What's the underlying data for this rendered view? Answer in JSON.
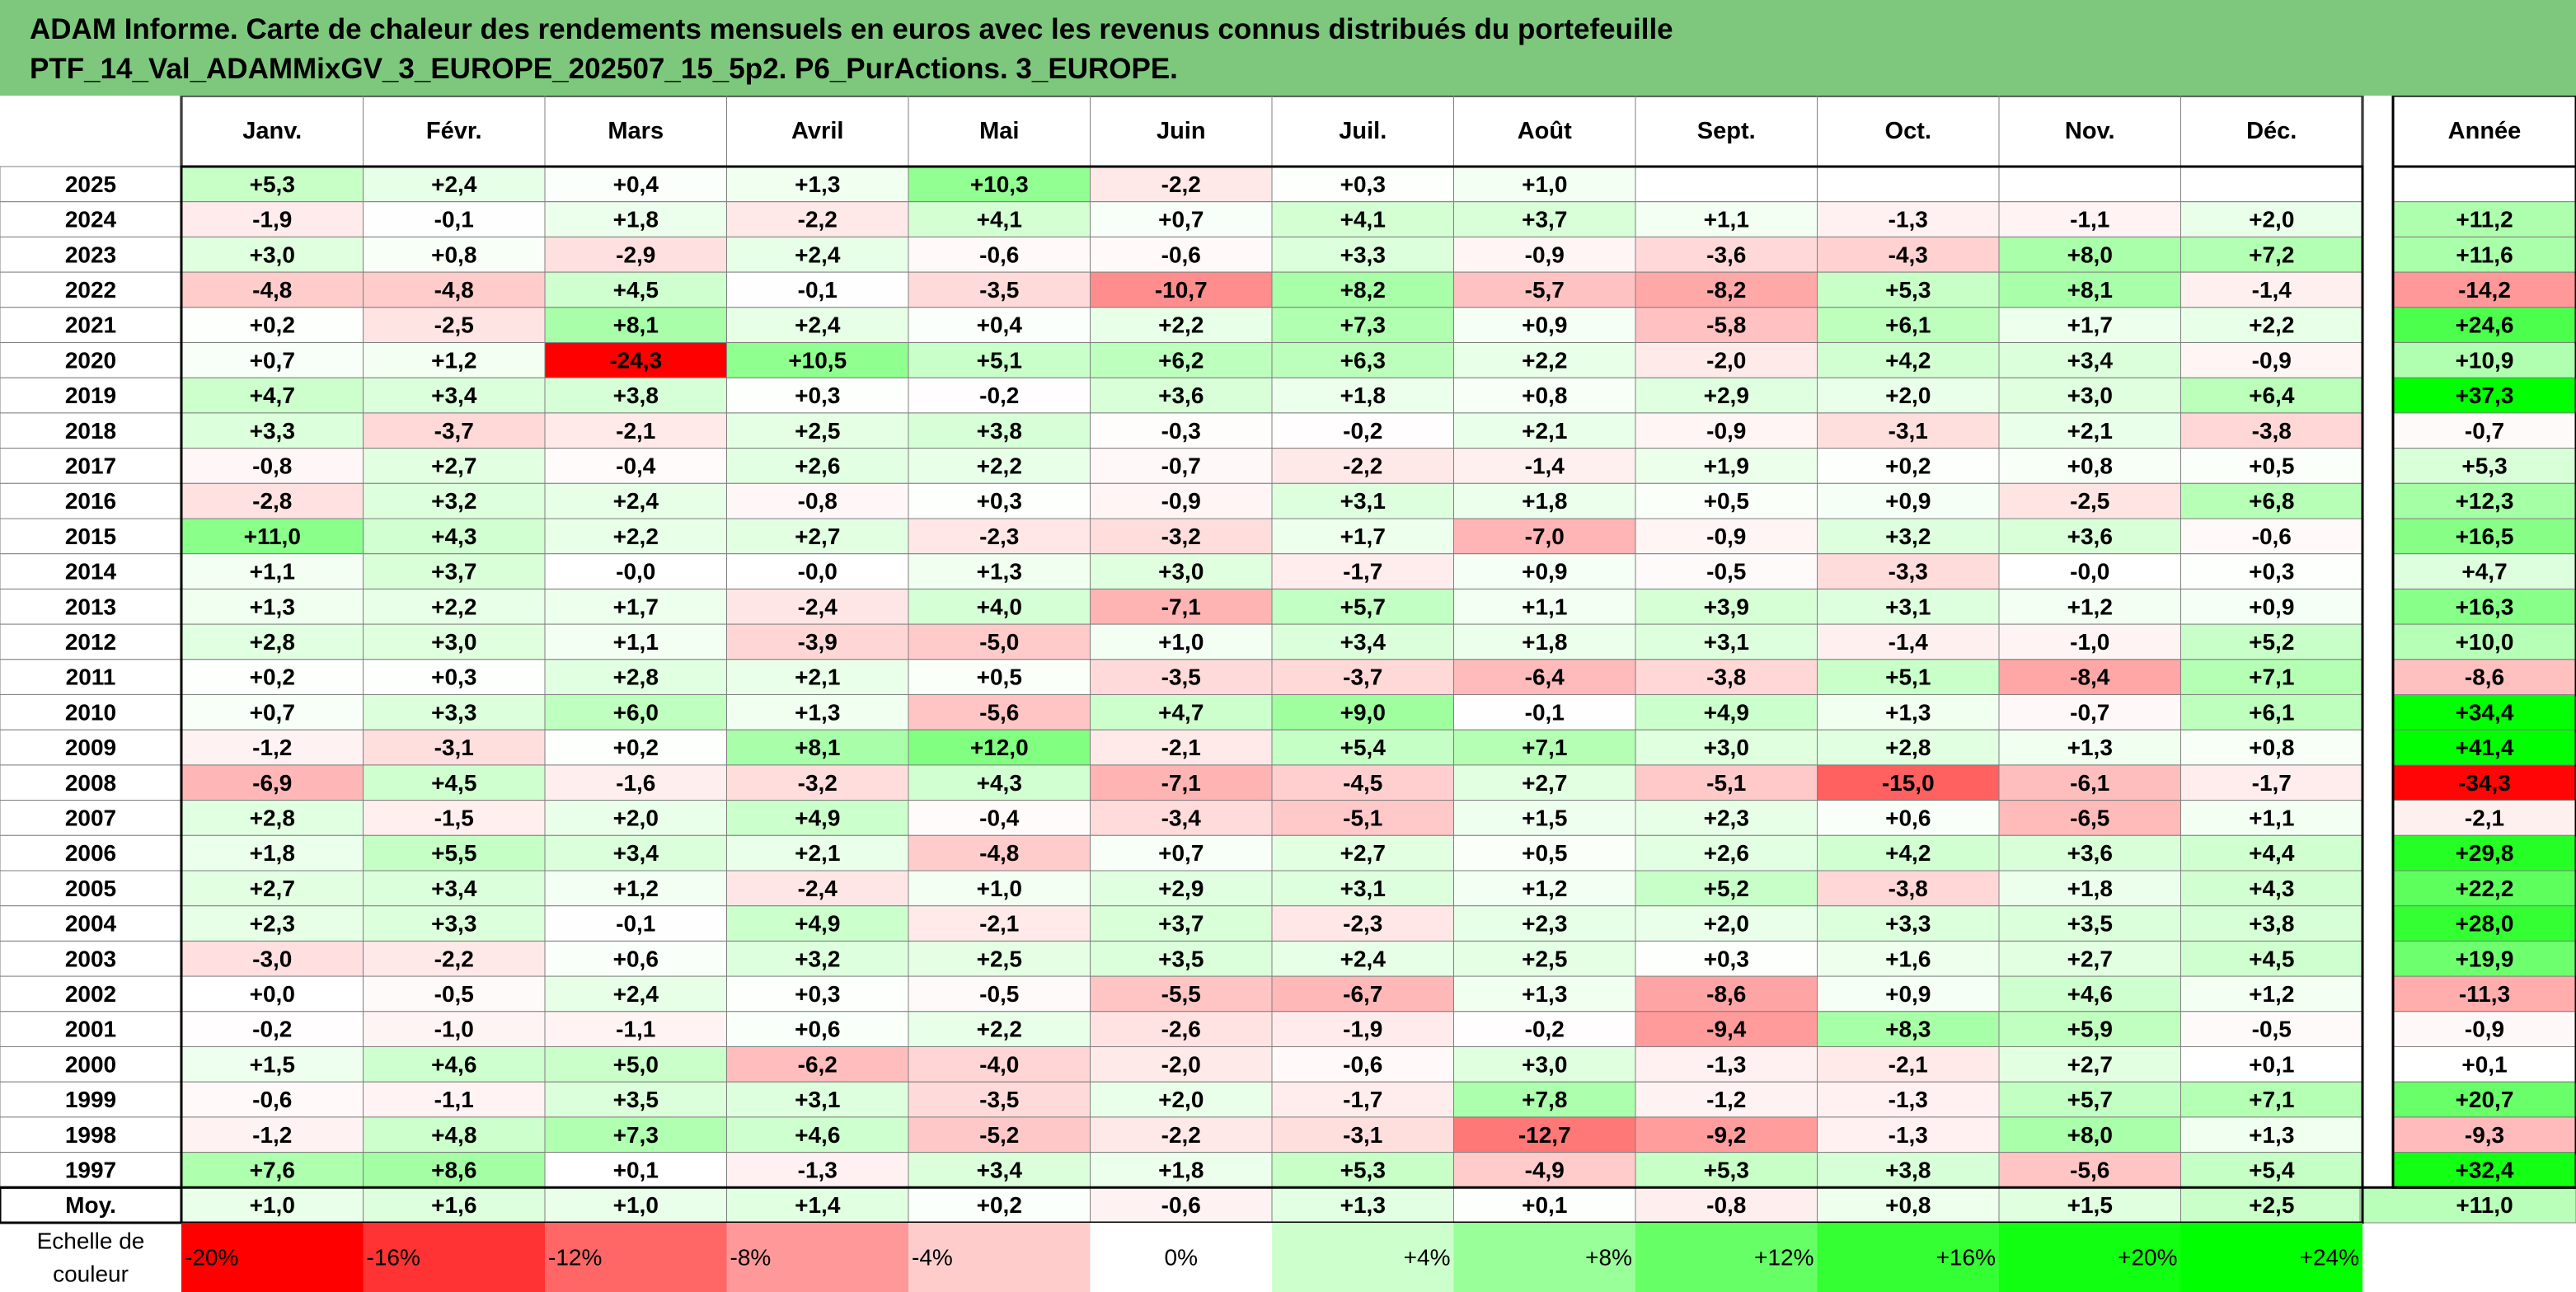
{
  "title": {
    "line1": "ADAM Informe. Carte de chaleur des rendements mensuels en euros avec les revenus connus distribués du portefeuille",
    "line2": "PTF_14_Val_ADAMMixGV_3_EUROPE_202507_15_5p2. P6_PurActions. 3_EUROPE."
  },
  "colors": {
    "title_background": "#7dc87d",
    "deep_red": "#ff0000",
    "deep_green": "#00ff00",
    "neutral": "#ffffff",
    "grid": "#7f7f7f",
    "frame": "#000000"
  },
  "chart_data": {
    "type": "heatmap",
    "months": [
      "Janv.",
      "Févr.",
      "Mars",
      "Avril",
      "Mai",
      "Juin",
      "Juil.",
      "Août",
      "Sept.",
      "Oct.",
      "Nov.",
      "Déc."
    ],
    "year_column_label": "Année",
    "average_row_label": "Moy.",
    "color_scale_label": [
      "Echelle de",
      "couleur"
    ],
    "rows": [
      {
        "year": "2025",
        "values": [
          "+5,3",
          "+2,4",
          "+0,4",
          "+1,3",
          "+10,3",
          "-2,2",
          "+0,3",
          "+1,0",
          "",
          "",
          "",
          ""
        ],
        "annual": ""
      },
      {
        "year": "2024",
        "values": [
          "-1,9",
          "-0,1",
          "+1,8",
          "-2,2",
          "+4,1",
          "+0,7",
          "+4,1",
          "+3,7",
          "+1,1",
          "-1,3",
          "-1,1",
          "+2,0"
        ],
        "annual": "+11,2"
      },
      {
        "year": "2023",
        "values": [
          "+3,0",
          "+0,8",
          "-2,9",
          "+2,4",
          "-0,6",
          "-0,6",
          "+3,3",
          "-0,9",
          "-3,6",
          "-4,3",
          "+8,0",
          "+7,2"
        ],
        "annual": "+11,6"
      },
      {
        "year": "2022",
        "values": [
          "-4,8",
          "-4,8",
          "+4,5",
          "-0,1",
          "-3,5",
          "-10,7",
          "+8,2",
          "-5,7",
          "-8,2",
          "+5,3",
          "+8,1",
          "-1,4"
        ],
        "annual": "-14,2"
      },
      {
        "year": "2021",
        "values": [
          "+0,2",
          "-2,5",
          "+8,1",
          "+2,4",
          "+0,4",
          "+2,2",
          "+7,3",
          "+0,9",
          "-5,8",
          "+6,1",
          "+1,7",
          "+2,2"
        ],
        "annual": "+24,6"
      },
      {
        "year": "2020",
        "values": [
          "+0,7",
          "+1,2",
          "-24,3",
          "+10,5",
          "+5,1",
          "+6,2",
          "+6,3",
          "+2,2",
          "-2,0",
          "+4,2",
          "+3,4",
          "-0,9"
        ],
        "annual": "+10,9"
      },
      {
        "year": "2019",
        "values": [
          "+4,7",
          "+3,4",
          "+3,8",
          "+0,3",
          "-0,2",
          "+3,6",
          "+1,8",
          "+0,8",
          "+2,9",
          "+2,0",
          "+3,0",
          "+6,4"
        ],
        "annual": "+37,3"
      },
      {
        "year": "2018",
        "values": [
          "+3,3",
          "-3,7",
          "-2,1",
          "+2,5",
          "+3,8",
          "-0,3",
          "-0,2",
          "+2,1",
          "-0,9",
          "-3,1",
          "+2,1",
          "-3,8"
        ],
        "annual": "-0,7"
      },
      {
        "year": "2017",
        "values": [
          "-0,8",
          "+2,7",
          "-0,4",
          "+2,6",
          "+2,2",
          "-0,7",
          "-2,2",
          "-1,4",
          "+1,9",
          "+0,2",
          "+0,8",
          "+0,5"
        ],
        "annual": "+5,3"
      },
      {
        "year": "2016",
        "values": [
          "-2,8",
          "+3,2",
          "+2,4",
          "-0,8",
          "+0,3",
          "-0,9",
          "+3,1",
          "+1,8",
          "+0,5",
          "+0,9",
          "-2,5",
          "+6,8"
        ],
        "annual": "+12,3"
      },
      {
        "year": "2015",
        "values": [
          "+11,0",
          "+4,3",
          "+2,2",
          "+2,7",
          "-2,3",
          "-3,2",
          "+1,7",
          "-7,0",
          "-0,9",
          "+3,2",
          "+3,6",
          "-0,6"
        ],
        "annual": "+16,5"
      },
      {
        "year": "2014",
        "values": [
          "+1,1",
          "+3,7",
          "-0,0",
          "-0,0",
          "+1,3",
          "+3,0",
          "-1,7",
          "+0,9",
          "-0,5",
          "-3,3",
          "-0,0",
          "+0,3"
        ],
        "annual": "+4,7"
      },
      {
        "year": "2013",
        "values": [
          "+1,3",
          "+2,2",
          "+1,7",
          "-2,4",
          "+4,0",
          "-7,1",
          "+5,7",
          "+1,1",
          "+3,9",
          "+3,1",
          "+1,2",
          "+0,9"
        ],
        "annual": "+16,3"
      },
      {
        "year": "2012",
        "values": [
          "+2,8",
          "+3,0",
          "+1,1",
          "-3,9",
          "-5,0",
          "+1,0",
          "+3,4",
          "+1,8",
          "+3,1",
          "-1,4",
          "-1,0",
          "+5,2"
        ],
        "annual": "+10,0"
      },
      {
        "year": "2011",
        "values": [
          "+0,2",
          "+0,3",
          "+2,8",
          "+2,1",
          "+0,5",
          "-3,5",
          "-3,7",
          "-6,4",
          "-3,8",
          "+5,1",
          "-8,4",
          "+7,1"
        ],
        "annual": "-8,6"
      },
      {
        "year": "2010",
        "values": [
          "+0,7",
          "+3,3",
          "+6,0",
          "+1,3",
          "-5,6",
          "+4,7",
          "+9,0",
          "-0,1",
          "+4,9",
          "+1,3",
          "-0,7",
          "+6,1"
        ],
        "annual": "+34,4"
      },
      {
        "year": "2009",
        "values": [
          "-1,2",
          "-3,1",
          "+0,2",
          "+8,1",
          "+12,0",
          "-2,1",
          "+5,4",
          "+7,1",
          "+3,0",
          "+2,8",
          "+1,3",
          "+0,8"
        ],
        "annual": "+41,4"
      },
      {
        "year": "2008",
        "values": [
          "-6,9",
          "+4,5",
          "-1,6",
          "-3,2",
          "+4,3",
          "-7,1",
          "-4,5",
          "+2,7",
          "-5,1",
          "-15,0",
          "-6,1",
          "-1,7"
        ],
        "annual": "-34,3"
      },
      {
        "year": "2007",
        "values": [
          "+2,8",
          "-1,5",
          "+2,0",
          "+4,9",
          "-0,4",
          "-3,4",
          "-5,1",
          "+1,5",
          "+2,3",
          "+0,6",
          "-6,5",
          "+1,1"
        ],
        "annual": "-2,1"
      },
      {
        "year": "2006",
        "values": [
          "+1,8",
          "+5,5",
          "+3,4",
          "+2,1",
          "-4,8",
          "+0,7",
          "+2,7",
          "+0,5",
          "+2,6",
          "+4,2",
          "+3,6",
          "+4,4"
        ],
        "annual": "+29,8"
      },
      {
        "year": "2005",
        "values": [
          "+2,7",
          "+3,4",
          "+1,2",
          "-2,4",
          "+1,0",
          "+2,9",
          "+3,1",
          "+1,2",
          "+5,2",
          "-3,8",
          "+1,8",
          "+4,3"
        ],
        "annual": "+22,2"
      },
      {
        "year": "2004",
        "values": [
          "+2,3",
          "+3,3",
          "-0,1",
          "+4,9",
          "-2,1",
          "+3,7",
          "-2,3",
          "+2,3",
          "+2,0",
          "+3,3",
          "+3,5",
          "+3,8"
        ],
        "annual": "+28,0"
      },
      {
        "year": "2003",
        "values": [
          "-3,0",
          "-2,2",
          "+0,6",
          "+3,2",
          "+2,5",
          "+3,5",
          "+2,4",
          "+2,5",
          "+0,3",
          "+1,6",
          "+2,7",
          "+4,5"
        ],
        "annual": "+19,9"
      },
      {
        "year": "2002",
        "values": [
          "+0,0",
          "-0,5",
          "+2,4",
          "+0,3",
          "-0,5",
          "-5,5",
          "-6,7",
          "+1,3",
          "-8,6",
          "+0,9",
          "+4,6",
          "+1,2"
        ],
        "annual": "-11,3"
      },
      {
        "year": "2001",
        "values": [
          "-0,2",
          "-1,0",
          "-1,1",
          "+0,6",
          "+2,2",
          "-2,6",
          "-1,9",
          "-0,2",
          "-9,4",
          "+8,3",
          "+5,9",
          "-0,5"
        ],
        "annual": "-0,9"
      },
      {
        "year": "2000",
        "values": [
          "+1,5",
          "+4,6",
          "+5,0",
          "-6,2",
          "-4,0",
          "-2,0",
          "-0,6",
          "+3,0",
          "-1,3",
          "-2,1",
          "+2,7",
          "+0,1"
        ],
        "annual": "+0,1"
      },
      {
        "year": "1999",
        "values": [
          "-0,6",
          "-1,1",
          "+3,5",
          "+3,1",
          "-3,5",
          "+2,0",
          "-1,7",
          "+7,8",
          "-1,2",
          "-1,3",
          "+5,7",
          "+7,1"
        ],
        "annual": "+20,7"
      },
      {
        "year": "1998",
        "values": [
          "-1,2",
          "+4,8",
          "+7,3",
          "+4,6",
          "-5,2",
          "-2,2",
          "-3,1",
          "-12,7",
          "-9,2",
          "-1,3",
          "+8,0",
          "+1,3"
        ],
        "annual": "-9,3"
      },
      {
        "year": "1997",
        "values": [
          "+7,6",
          "+8,6",
          "+0,1",
          "-1,3",
          "+3,4",
          "+1,8",
          "+5,3",
          "-4,9",
          "+5,3",
          "+3,8",
          "-5,6",
          "+5,4"
        ],
        "annual": "+32,4"
      }
    ],
    "average": {
      "values": [
        "+1,0",
        "+1,6",
        "+1,0",
        "+1,4",
        "+0,2",
        "-0,6",
        "+1,3",
        "+0,1",
        "-0,8",
        "+0,8",
        "+1,5",
        "+2,5"
      ],
      "annual": "+11,0"
    },
    "legend": [
      {
        "label": "-20%",
        "value": -20,
        "color": "#ff0000"
      },
      {
        "label": "-16%",
        "value": -16,
        "color": "#ff3333"
      },
      {
        "label": "-12%",
        "value": -12,
        "color": "#ff6666"
      },
      {
        "label": "-8%",
        "value": -8,
        "color": "#ff9999"
      },
      {
        "label": "-4%",
        "value": -4,
        "color": "#ffcccc"
      },
      {
        "label": "0%",
        "value": 0,
        "color": "#ffffff"
      },
      {
        "label": "+4%",
        "value": 4,
        "color": "#ccffcc"
      },
      {
        "label": "+8%",
        "value": 8,
        "color": "#99ff99"
      },
      {
        "label": "+12%",
        "value": 12,
        "color": "#66ff66"
      },
      {
        "label": "+16%",
        "value": 16,
        "color": "#33ff33"
      },
      {
        "label": "+20%",
        "value": 20,
        "color": "#11ff11"
      },
      {
        "label": "+24%",
        "value": 24,
        "color": "#00ff00"
      }
    ],
    "monthly_color_range": [
      -24,
      24
    ],
    "annual_color_range": [
      -35,
      35
    ]
  }
}
